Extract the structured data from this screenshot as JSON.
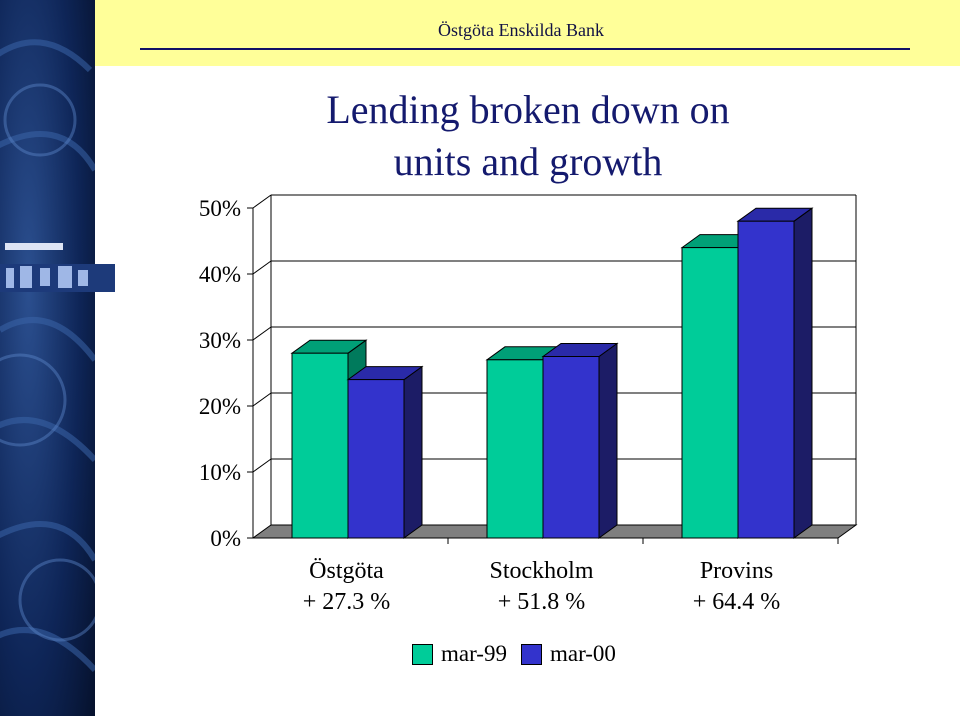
{
  "header": {
    "bank_name": "Östgöta Enskilda Bank"
  },
  "title": {
    "line1": "Lending broken down on",
    "line2": "units and growth"
  },
  "colors": {
    "mar99": "#00cc99",
    "mar99_top": "#00a077",
    "mar99_side": "#007a5c",
    "mar00": "#3333cc",
    "mar00_top": "#2a2aa8",
    "mar00_side": "#1c1c66",
    "title": "#141a6e",
    "header_band": "#ffff99",
    "sidebar": "#0b1e4a"
  },
  "chart_data": {
    "type": "bar",
    "categories": [
      "Östgöta",
      "Stockholm",
      "Provins"
    ],
    "category_sublabels": [
      "+ 27.3 %",
      "+ 51.8 %",
      "+ 64.4 %"
    ],
    "series": [
      {
        "name": "mar-99",
        "values": [
          28,
          27,
          44
        ]
      },
      {
        "name": "mar-00",
        "values": [
          24,
          27.5,
          48
        ]
      }
    ],
    "y_ticks": [
      "0%",
      "10%",
      "20%",
      "30%",
      "40%",
      "50%"
    ],
    "ylim": [
      0,
      50
    ],
    "grid": true,
    "three_d": true,
    "legend_position": "bottom-center"
  }
}
